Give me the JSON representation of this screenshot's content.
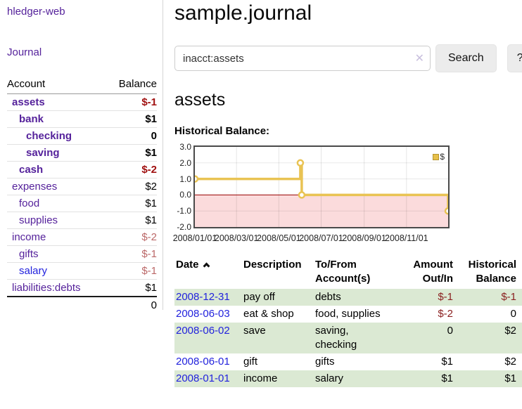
{
  "app": {
    "brand": "hledger-web",
    "nav_journal": "Journal"
  },
  "sidebar": {
    "header": {
      "account": "Account",
      "balance": "Balance"
    },
    "rows": [
      {
        "label": "assets",
        "balance": "$-1"
      },
      {
        "label": "bank",
        "balance": "$1"
      },
      {
        "label": "checking",
        "balance": "0"
      },
      {
        "label": "saving",
        "balance": "$1"
      },
      {
        "label": "cash",
        "balance": "$-2"
      },
      {
        "label": "expenses",
        "balance": "$2"
      },
      {
        "label": "food",
        "balance": "$1"
      },
      {
        "label": "supplies",
        "balance": "$1"
      },
      {
        "label": "income",
        "balance": "$-2"
      },
      {
        "label": "gifts",
        "balance": "$-1"
      },
      {
        "label": "salary",
        "balance": "$-1"
      },
      {
        "label": "liabilities:debts",
        "balance": "$1"
      }
    ],
    "total": "0"
  },
  "main": {
    "title": "sample.journal",
    "search": {
      "value": "inacct:assets",
      "clear_icon": "✕",
      "button_label": "Search",
      "help_label": "?"
    },
    "account_heading": "assets"
  },
  "chart_data": {
    "type": "line",
    "title": "Historical Balance:",
    "series": [
      {
        "name": "$",
        "step": "after",
        "points": [
          [
            "2008-01-01",
            1
          ],
          [
            "2008-06-01",
            2
          ],
          [
            "2008-06-03",
            0
          ],
          [
            "2008-12-31",
            -1
          ]
        ]
      }
    ],
    "x_range": [
      "2008-01-01",
      "2008-12-31"
    ],
    "ylim": [
      -2,
      3
    ],
    "yticks": [
      "3.0",
      "2.0",
      "1.0",
      "0.0",
      "-1.0",
      "-2.0"
    ],
    "xticks": [
      {
        "date": "2008-01-01",
        "label": "2008/01/01"
      },
      {
        "date": "2008-03-01",
        "label": "2008/03/01"
      },
      {
        "date": "2008-05-01",
        "label": "2008/05/01"
      },
      {
        "date": "2008-07-01",
        "label": "2008/07/01"
      },
      {
        "date": "2008-09-01",
        "label": "2008/09/01"
      },
      {
        "date": "2008-11-01",
        "label": "2008/11/01"
      }
    ],
    "legend": {
      "position": "top-right",
      "entries": [
        "$"
      ]
    },
    "line_color": "#e9c353",
    "negative_region_color": "#fbdbdc",
    "zero_line_color": "#990000",
    "grid": true
  },
  "register": {
    "headers": {
      "date": "Date",
      "description": "Description",
      "accounts": "To/From Account(s)",
      "amount": "Amount Out/In",
      "balance": "Historical Balance"
    },
    "rows": [
      {
        "date": "2008-12-31",
        "description": "pay off",
        "accounts": "debts",
        "amount": "$-1",
        "balance": "$-1"
      },
      {
        "date": "2008-06-03",
        "description": "eat & shop",
        "accounts": "food, supplies",
        "amount": "$-2",
        "balance": "0"
      },
      {
        "date": "2008-06-02",
        "description": "save",
        "accounts": "saving,\nchecking",
        "amount": "0",
        "balance": "$2"
      },
      {
        "date": "2008-06-01",
        "description": "gift",
        "accounts": "gifts",
        "amount": "$1",
        "balance": "$2"
      },
      {
        "date": "2008-01-01",
        "description": "income",
        "accounts": "salary",
        "amount": "$1",
        "balance": "$1"
      }
    ]
  }
}
